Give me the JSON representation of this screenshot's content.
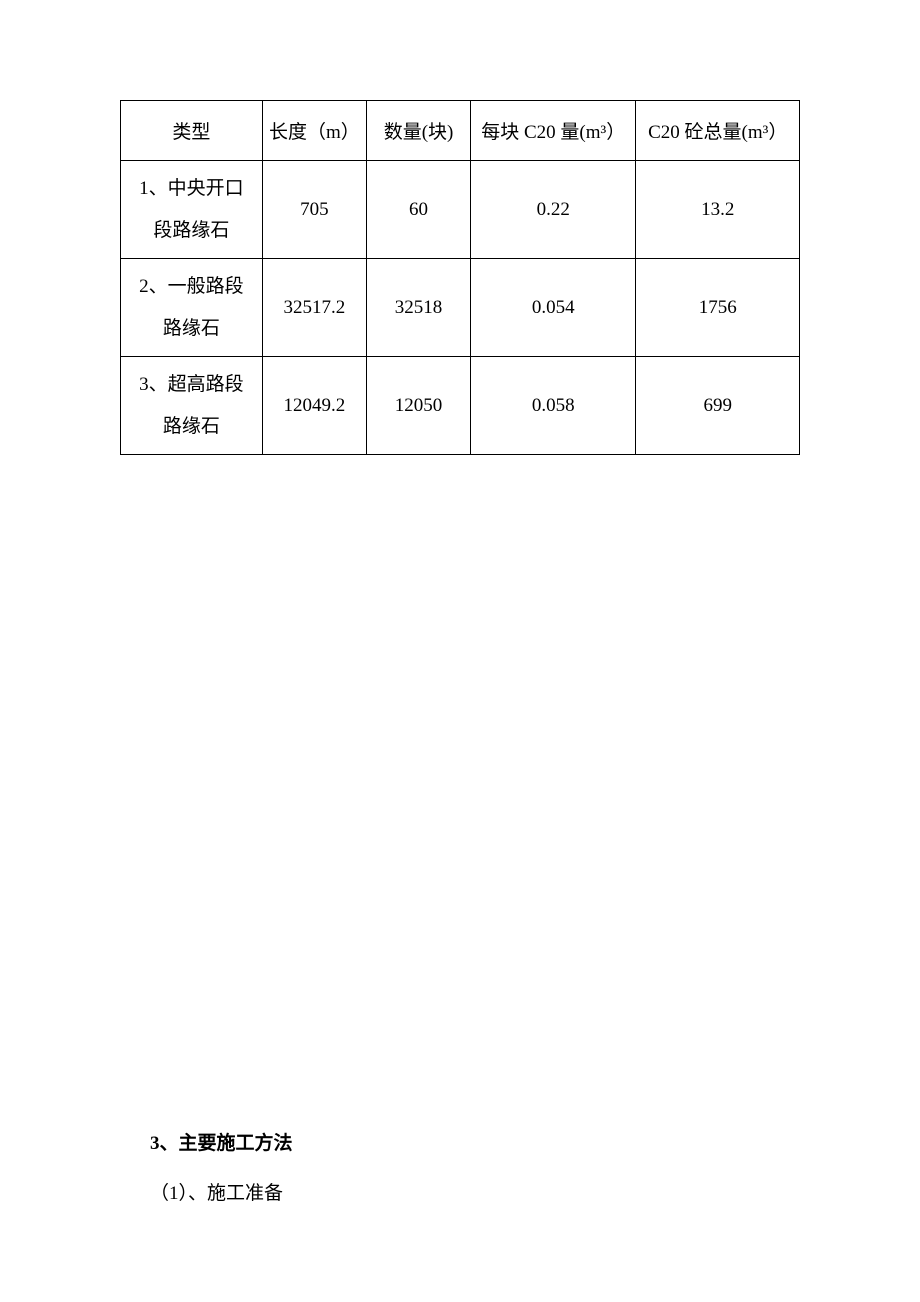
{
  "table": {
    "columns": [
      "类型",
      "长度（m）",
      "数量(块)",
      "每块 C20 量(m³）",
      "C20 砼总量(m³）"
    ],
    "rows": [
      {
        "type_line1": "1、中央开口",
        "type_line2": "段路缘石",
        "length": "705",
        "qty": "60",
        "perunit": "0.22",
        "total": "13.2"
      },
      {
        "type_line1": "2、一般路段",
        "type_line2": "路缘石",
        "length": "32517.2",
        "qty": "32518",
        "perunit": "0.054",
        "total": "1756"
      },
      {
        "type_line1": "3、超高路段",
        "type_line2": "路缘石",
        "length": "12049.2",
        "qty": "12050",
        "perunit": "0.058",
        "total": "699"
      }
    ],
    "border_color": "#000000",
    "background_color": "#ffffff",
    "font_size": 19,
    "text_color": "#000000"
  },
  "headings": {
    "section": "3、主要施工方法",
    "sub": "（1）、施工准备"
  }
}
